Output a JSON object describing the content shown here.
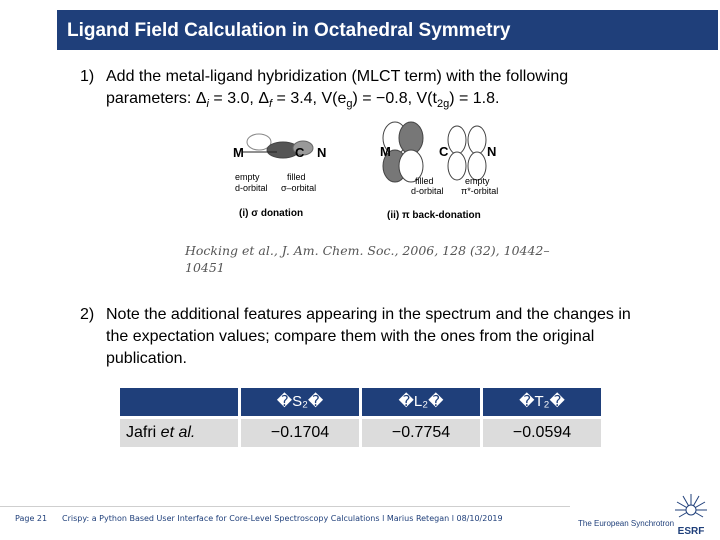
{
  "title": "Ligand Field Calculation in Octahedral Symmetry",
  "item1": {
    "num": "1)",
    "line1": "Add the metal-ligand hybridization (MLCT term) with the following",
    "line2_prefix": "parameters: Δ",
    "line2_sub_i": "i",
    "line2_mid1": " = 3.0, Δ",
    "line2_sub_f": "f",
    "line2_mid2": " = 3.4, V(e",
    "line2_sub_g": "g",
    "line2_mid3": ") = −0.8, V(t",
    "line2_sub_2g": "2g",
    "line2_end": ") = 1.8."
  },
  "diagram": {
    "left": {
      "m": "M",
      "c": "C",
      "n": "N",
      "label_empty": "empty",
      "label_dorb": "d-orbital",
      "label_filled": "filled",
      "label_sorb": "σ–orbital",
      "caption": "(i) σ donation"
    },
    "right": {
      "m": "M",
      "c": "C",
      "n": "N",
      "label_filled": "filled",
      "label_dorb": "d-orbital",
      "label_empty": "empty",
      "label_piorb": "π*-orbital",
      "caption": "(ii) π back-donation"
    }
  },
  "citation": {
    "line1": "Hocking et al., J. Am. Chem. Soc., 2006, 128 (32), 10442–",
    "line2": "10451"
  },
  "item2": {
    "num": "2)",
    "line1": "Note the additional features appearing in the spectrum and the changes in",
    "line2": "the expectation values; compare them with the ones from the original",
    "line3": "publication."
  },
  "table": {
    "headers": [
      "",
      "�S₂�",
      "�L₂�",
      "�T₂�"
    ],
    "header_sub": [
      "",
      "z",
      "z",
      "z"
    ],
    "header_main": [
      "",
      "S",
      "L",
      "T"
    ],
    "row_label_prefix": "Jafri ",
    "row_label_italic": "et al.",
    "values": [
      "−0.1704",
      "−0.7754",
      "−0.0594"
    ]
  },
  "footer": {
    "page": "Page 21",
    "text": "Crispy: a Python Based User Interface for Core-Level Spectroscopy Calculations l Marius Retegan l 08/10/2019",
    "org": "The European Synchrotron",
    "logo": "ESRF"
  },
  "colors": {
    "title_bg": "#1f3f7a",
    "table_row_bg": "#dcdcdc"
  }
}
